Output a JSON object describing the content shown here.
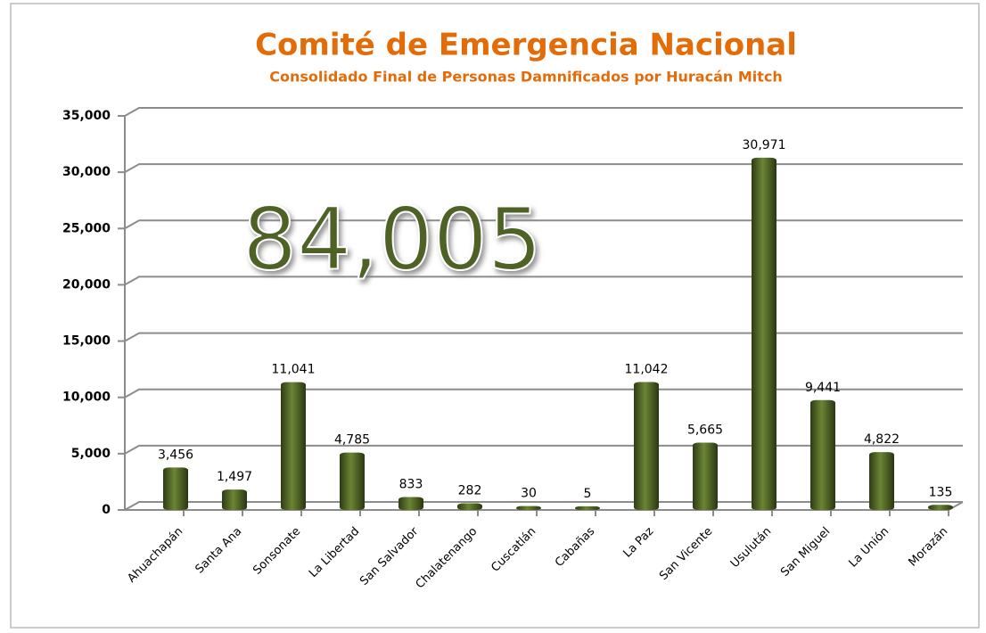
{
  "chart_data": {
    "type": "bar",
    "title": "Comité de Emergencia Nacional",
    "subtitle": "Consolidado Final de Personas Damnificados por Huracán Mitch",
    "annotation": "84,005",
    "categories": [
      "Ahuachapán",
      "Santa Ana",
      "Sonsonate",
      "La Libertad",
      "San Salvador",
      "Chalatenango",
      "Cuscatlán",
      "Cabañas",
      "La Paz",
      "San Vicente",
      "Usulután",
      "San Miguel",
      "La Unión",
      "Morazán"
    ],
    "values": [
      3456,
      1497,
      11041,
      4785,
      833,
      282,
      30,
      5,
      11042,
      5665,
      30971,
      9441,
      4822,
      135
    ],
    "value_labels": [
      "3,456",
      "1,497",
      "11,041",
      "4,785",
      "833",
      "282",
      "30",
      "5",
      "11,042",
      "5,665",
      "30,971",
      "9,441",
      "4,822",
      "135"
    ],
    "color": "#4f6228",
    "ylim": [
      0,
      35000
    ],
    "yticks": [
      0,
      {
        "value": 5000,
        "label": "5,000"
      },
      {
        "value": 10000,
        "label": "10,000"
      },
      {
        "value": 15000,
        "label": "15,000"
      },
      {
        "value": 20000,
        "label": "20,000"
      },
      {
        "value": 25000,
        "label": "25,000"
      },
      {
        "value": 30000,
        "label": "30,000"
      },
      {
        "value": 35000,
        "label": "35,000"
      }
    ],
    "grid": true
  }
}
